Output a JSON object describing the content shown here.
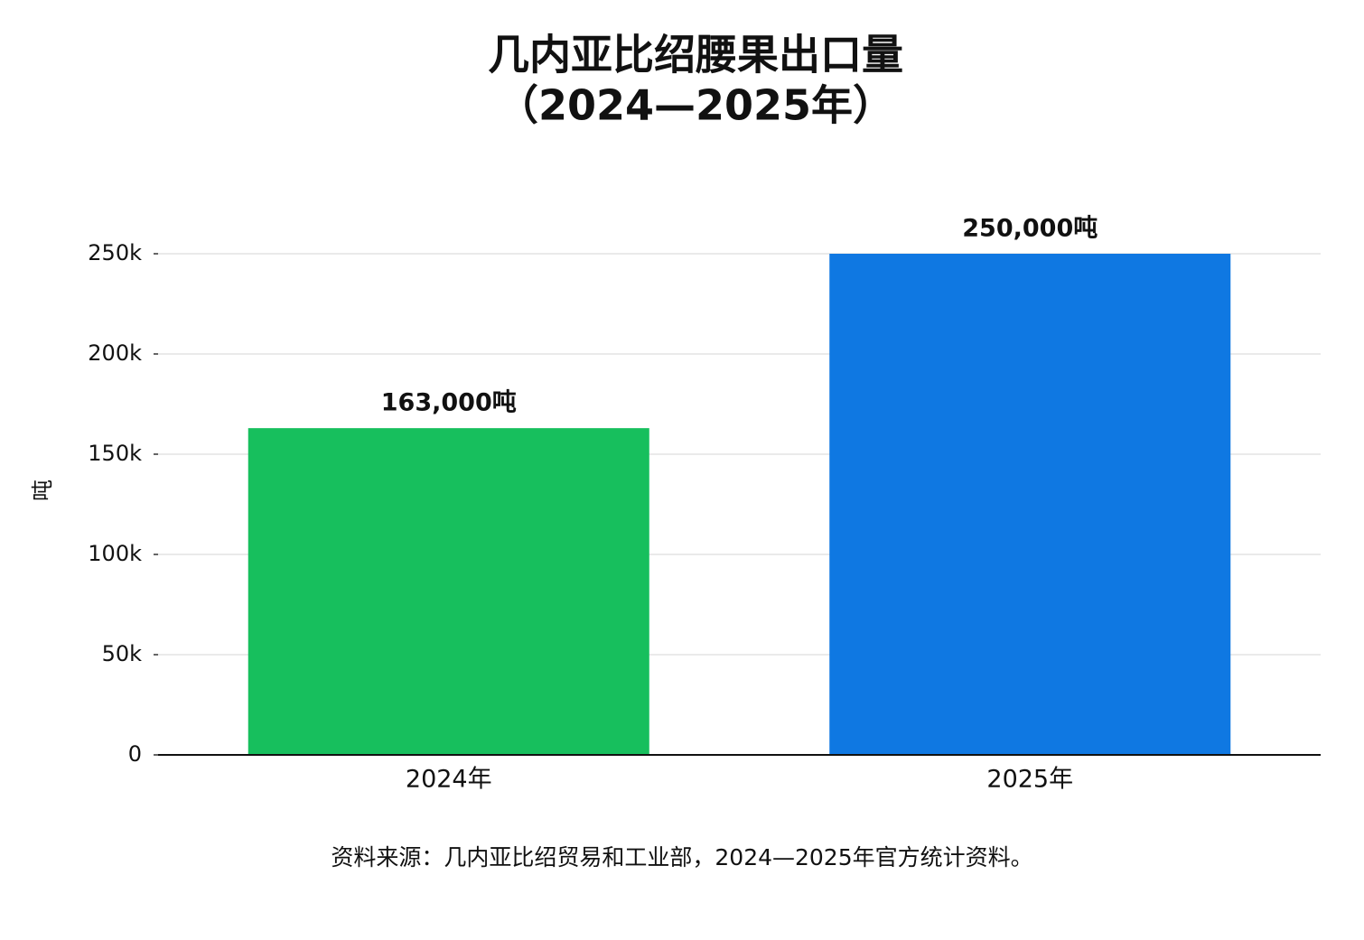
{
  "chart_data": {
    "type": "bar",
    "title": [
      "几内亚比绍腰果出口量",
      "（2024—2025年）"
    ],
    "ylabel": "吨",
    "categories": [
      "2024年",
      "2025年"
    ],
    "values": [
      163000,
      250000
    ],
    "value_labels": [
      "163,000吨",
      "250,000吨"
    ],
    "colors": [
      "#17bf5d",
      "#0f78e2"
    ],
    "ylim": [
      0,
      250000
    ],
    "yticks": [
      0,
      {
        "value": 50000,
        "label": "50k"
      },
      {
        "value": 100000,
        "label": "100k"
      },
      {
        "value": 150000,
        "label": "150k"
      },
      {
        "value": 200000,
        "label": "200k"
      },
      {
        "value": 250000,
        "label": "250k"
      }
    ],
    "grid": true,
    "source": "资料来源：几内亚比绍贸易和工业部，2024—2025年官方统计资料。"
  }
}
